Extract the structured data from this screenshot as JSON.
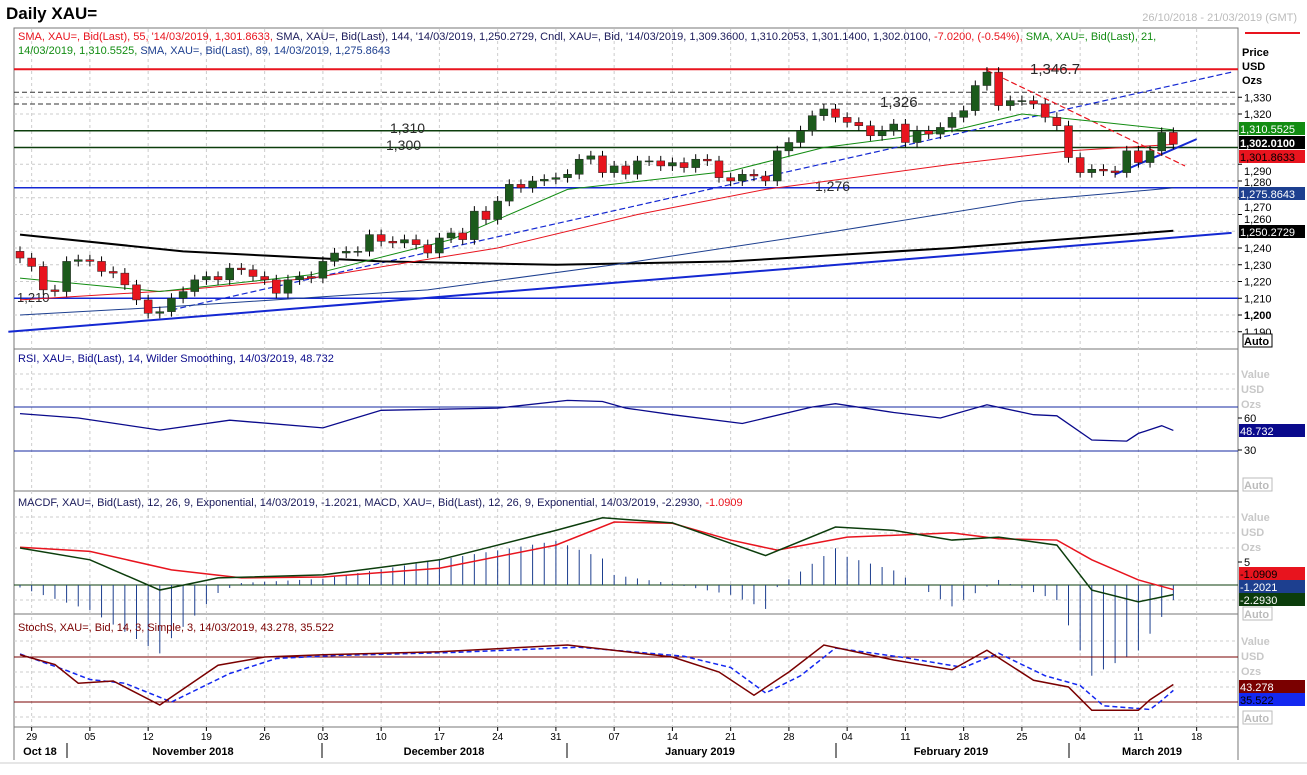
{
  "header": {
    "title": "Daily XAU=",
    "date_range": "26/10/2018 - 21/03/2019 (GMT)"
  },
  "colors": {
    "up": "#1c5a1c",
    "down": "#e8141e",
    "sma21": "#128c12",
    "sma55": "#e8141e",
    "sma89": "#1d3f8f",
    "sma144": "#000000",
    "trend": "#1428d2",
    "rsi": "#0a0a8c",
    "macd": "#0c3d0c",
    "signal": "#e8141e",
    "stochK": "#7a0000",
    "stochD": "#1428f0"
  },
  "legend": {
    "line1": [
      {
        "t": "SMA, XAU=, Bid(Last),  55, '14/03/2019, 1,301.8633, ",
        "c": "#e8141e"
      },
      {
        "t": "SMA, XAU=, Bid(Last),  144, '14/03/2019, 1,250.2729, ",
        "c": "#1a1a5a"
      },
      {
        "t": "Cndl, XAU=, Bid, '14/03/2019, 1,309.3600, 1,310.2053, 1,301.1400, 1,302.0100, ",
        "c": "#1a1a5a"
      },
      {
        "t": "-7.0200, (-0.54%), ",
        "c": "#e8141e"
      },
      {
        "t": "SMA, XAU=, Bid(Last),  21,",
        "c": "#128c12"
      }
    ],
    "line2": [
      {
        "t": "14/03/2019, 1,310.5525, ",
        "c": "#128c12"
      },
      {
        "t": "SMA, XAU=, Bid(Last),  89, 14/03/2019, 1,275.8643",
        "c": "#1d3f8f"
      }
    ],
    "rsi": "RSI, XAU=, Bid(Last),  14, Wilder Smoothing, 14/03/2019, 48.732",
    "macd_a": "MACDF, XAU=, Bid(Last),  12, 26, 9, Exponential, 14/03/2019, -1.2021, ",
    "macd_b": "MACD, XAU=, Bid(Last),  12, 26, 9, Exponential, 14/03/2019, -2.2930, ",
    "macd_c": "-1.0909",
    "stoch": "StochS, XAU=, Bid,  14, 3, Simple, 3, 14/03/2019, 43.278, 35.522"
  },
  "axis": {
    "price_header": [
      "Price",
      "USD",
      "Ozs"
    ],
    "price_ticks": [
      "1,330",
      "1,320",
      "1,290",
      "1,280",
      "1,270",
      "1,260",
      "1,240",
      "1,230",
      "1,220",
      "1,210",
      "1,200",
      "1,190"
    ],
    "price_tick_values": [
      1330,
      1320,
      1290,
      1280,
      1270,
      1260,
      1240,
      1230,
      1220,
      1210,
      1200,
      1190
    ],
    "value_header": [
      "Value",
      "USD",
      "Ozs"
    ],
    "rsi_ticks": [
      "60",
      "30"
    ],
    "macd_ticks": [
      "5"
    ],
    "auto": "Auto",
    "badges": {
      "sma21": "1,310.5525",
      "last": "1,302.0100",
      "sma55": "1,301.8633",
      "sma89": "1,275.8643",
      "sma144": "1,250.2729",
      "rsi": "48.732",
      "macd_signal": "-1.0909",
      "macdf": "-1.2021",
      "macd": "-2.2930",
      "stochK": "43.278",
      "stochD": "35.522"
    },
    "day_labels": [
      "29",
      "05",
      "12",
      "19",
      "26",
      "03",
      "10",
      "17",
      "24",
      "31",
      "07",
      "14",
      "21",
      "28",
      "04",
      "11",
      "18",
      "25",
      "04",
      "11",
      "18"
    ],
    "day_label_index": [
      1,
      6,
      11,
      16,
      21,
      26,
      31,
      36,
      41,
      46,
      51,
      56,
      61,
      66,
      71,
      76,
      81,
      86,
      91,
      96,
      101
    ],
    "months": [
      "Oct 18",
      "November 2018",
      "December 2018",
      "January 2019",
      "February 2019",
      "March 2019"
    ]
  },
  "chart_data": {
    "type": "candlestick",
    "title": "Daily XAU=",
    "ylabel": "Price USD Ozs",
    "ylim": [
      1185,
      1355
    ],
    "start_date": "26/10/2018",
    "closes": [
      1234,
      1229,
      1215,
      1214,
      1232,
      1233,
      1232,
      1226,
      1225,
      1218,
      1209,
      1201,
      1202,
      1210,
      1214,
      1221,
      1223,
      1221,
      1228,
      1227,
      1223,
      1221,
      1213,
      1221,
      1223,
      1222,
      1232,
      1237,
      1238,
      1238,
      1248,
      1244,
      1243,
      1245,
      1242,
      1237,
      1246,
      1249,
      1245,
      1262,
      1257,
      1268,
      1278,
      1276,
      1280,
      1281,
      1282,
      1284,
      1293,
      1295,
      1285,
      1289,
      1284,
      1292,
      1292,
      1289,
      1291,
      1288,
      1293,
      1292,
      1282,
      1280,
      1284,
      1283,
      1280,
      1298,
      1303,
      1310,
      1319,
      1323,
      1318,
      1315,
      1313,
      1307,
      1310,
      1314,
      1303,
      1310,
      1308,
      1312,
      1318,
      1322,
      1337,
      1345,
      1325,
      1328,
      1328,
      1326,
      1318,
      1313,
      1294,
      1285,
      1287,
      1286,
      1285,
      1298,
      1291,
      1298,
      1309,
      1302
    ],
    "first_open": 1238,
    "sma21": [
      [
        0,
        1222
      ],
      [
        12,
        1214
      ],
      [
        25,
        1224
      ],
      [
        37,
        1245
      ],
      [
        47,
        1275
      ],
      [
        61,
        1286
      ],
      [
        69,
        1300
      ],
      [
        80,
        1310
      ],
      [
        86,
        1320
      ],
      [
        93,
        1315
      ],
      [
        99,
        1310.55
      ]
    ],
    "sma55": [
      [
        0,
        1209
      ],
      [
        14,
        1215
      ],
      [
        25,
        1222
      ],
      [
        41,
        1240
      ],
      [
        53,
        1260
      ],
      [
        64,
        1275
      ],
      [
        80,
        1290
      ],
      [
        90,
        1298
      ],
      [
        99,
        1301.86
      ]
    ],
    "sma89": [
      [
        0,
        1200
      ],
      [
        13,
        1205
      ],
      [
        35,
        1215
      ],
      [
        51,
        1230
      ],
      [
        70,
        1250
      ],
      [
        86,
        1268
      ],
      [
        99,
        1275.86
      ]
    ],
    "sma144": [
      [
        0,
        1248
      ],
      [
        14,
        1238
      ],
      [
        31,
        1232
      ],
      [
        46,
        1230
      ],
      [
        61,
        1232
      ],
      [
        80,
        1240
      ],
      [
        99,
        1250.27
      ]
    ],
    "levels": [
      {
        "value": 1346.7,
        "label": "1,346.7",
        "color": "#e8141e"
      },
      {
        "value": 1326,
        "label": "1,326",
        "color": "#333",
        "dashed": true
      },
      {
        "value": 1333,
        "label": "",
        "color": "#333",
        "dashed": true
      },
      {
        "value": 1310,
        "label": "1,310",
        "color": "#0c3d0c"
      },
      {
        "value": 1300,
        "label": "1,300",
        "color": "#0c3d0c"
      },
      {
        "value": 1276,
        "label": "1,276",
        "color": "#1428d2"
      },
      {
        "value": 1210,
        "label": "1,210",
        "color": "#1428d2"
      }
    ],
    "trendlines": [
      {
        "from": [
          -1,
          1190
        ],
        "to": [
          104,
          1249
        ],
        "color": "#1428d2",
        "dashed": false
      },
      {
        "from": [
          13,
          1203
        ],
        "to": [
          104,
          1345
        ],
        "color": "#1428d2",
        "dashed": true
      },
      {
        "from": [
          94,
          1284
        ],
        "to": [
          101,
          1305
        ],
        "color": "#1428d2",
        "dashed": false
      },
      {
        "from": [
          83,
          1346
        ],
        "to": [
          100,
          1289
        ],
        "color": "#e8141e",
        "dashed": true
      }
    ],
    "rsi": {
      "levels": [
        70,
        30
      ],
      "points": [
        [
          0,
          64
        ],
        [
          5,
          60
        ],
        [
          12,
          49
        ],
        [
          18,
          58
        ],
        [
          26,
          51
        ],
        [
          31,
          67
        ],
        [
          41,
          69
        ],
        [
          47,
          76
        ],
        [
          50,
          75
        ],
        [
          52,
          69
        ],
        [
          56,
          63
        ],
        [
          62,
          55
        ],
        [
          68,
          70
        ],
        [
          70,
          73
        ],
        [
          75,
          65
        ],
        [
          79,
          60
        ],
        [
          83,
          72
        ],
        [
          87,
          63
        ],
        [
          89,
          62
        ],
        [
          92,
          40
        ],
        [
          95,
          39
        ],
        [
          96,
          46
        ],
        [
          98,
          53
        ],
        [
          99,
          48.7
        ]
      ]
    },
    "macd": {
      "macd": [
        [
          0,
          8.8
        ],
        [
          6,
          6
        ],
        [
          12,
          -1.2
        ],
        [
          17,
          1.7
        ],
        [
          26,
          2.4
        ],
        [
          36,
          6
        ],
        [
          46,
          13
        ],
        [
          50,
          16
        ],
        [
          56,
          14.8
        ],
        [
          64,
          7
        ],
        [
          70,
          13.8
        ],
        [
          75,
          13
        ],
        [
          80,
          10.7
        ],
        [
          84,
          11.4
        ],
        [
          89,
          9.5
        ],
        [
          92,
          -1.2
        ],
        [
          96,
          -4
        ],
        [
          99,
          -2.29
        ]
      ],
      "signal": [
        [
          0,
          9
        ],
        [
          6,
          8
        ],
        [
          13,
          3.6
        ],
        [
          19,
          1.7
        ],
        [
          26,
          1.9
        ],
        [
          36,
          4
        ],
        [
          46,
          9.5
        ],
        [
          51,
          15
        ],
        [
          56,
          14.7
        ],
        [
          61,
          10.7
        ],
        [
          65,
          8.3
        ],
        [
          71,
          11.4
        ],
        [
          80,
          12.4
        ],
        [
          84,
          11
        ],
        [
          89,
          10.7
        ],
        [
          92,
          6
        ],
        [
          96,
          1.2
        ],
        [
          99,
          -1.09
        ]
      ]
    },
    "stoch": {
      "levels": [
        80,
        20
      ],
      "k": [
        [
          0,
          83
        ],
        [
          3,
          70
        ],
        [
          5,
          45
        ],
        [
          8,
          48
        ],
        [
          12,
          16
        ],
        [
          17,
          69
        ],
        [
          21,
          80
        ],
        [
          26,
          83
        ],
        [
          36,
          87
        ],
        [
          47,
          96
        ],
        [
          56,
          80
        ],
        [
          60,
          60
        ],
        [
          63,
          29
        ],
        [
          66,
          60
        ],
        [
          69,
          96
        ],
        [
          75,
          76
        ],
        [
          80,
          63
        ],
        [
          83,
          89
        ],
        [
          87,
          49
        ],
        [
          90,
          40
        ],
        [
          92,
          9
        ],
        [
          96,
          9
        ],
        [
          97,
          23
        ],
        [
          99,
          43.3
        ]
      ],
      "d": [
        [
          0,
          84
        ],
        [
          4,
          62
        ],
        [
          6,
          50
        ],
        [
          9,
          45
        ],
        [
          13,
          20
        ],
        [
          18,
          58
        ],
        [
          22,
          78
        ],
        [
          27,
          82
        ],
        [
          37,
          86
        ],
        [
          48,
          93
        ],
        [
          57,
          81
        ],
        [
          61,
          66
        ],
        [
          64,
          32
        ],
        [
          67,
          55
        ],
        [
          70,
          92
        ],
        [
          76,
          79
        ],
        [
          81,
          66
        ],
        [
          84,
          85
        ],
        [
          88,
          55
        ],
        [
          91,
          42
        ],
        [
          93,
          15
        ],
        [
          97,
          10
        ],
        [
          98,
          22
        ],
        [
          99,
          35.5
        ]
      ]
    }
  }
}
